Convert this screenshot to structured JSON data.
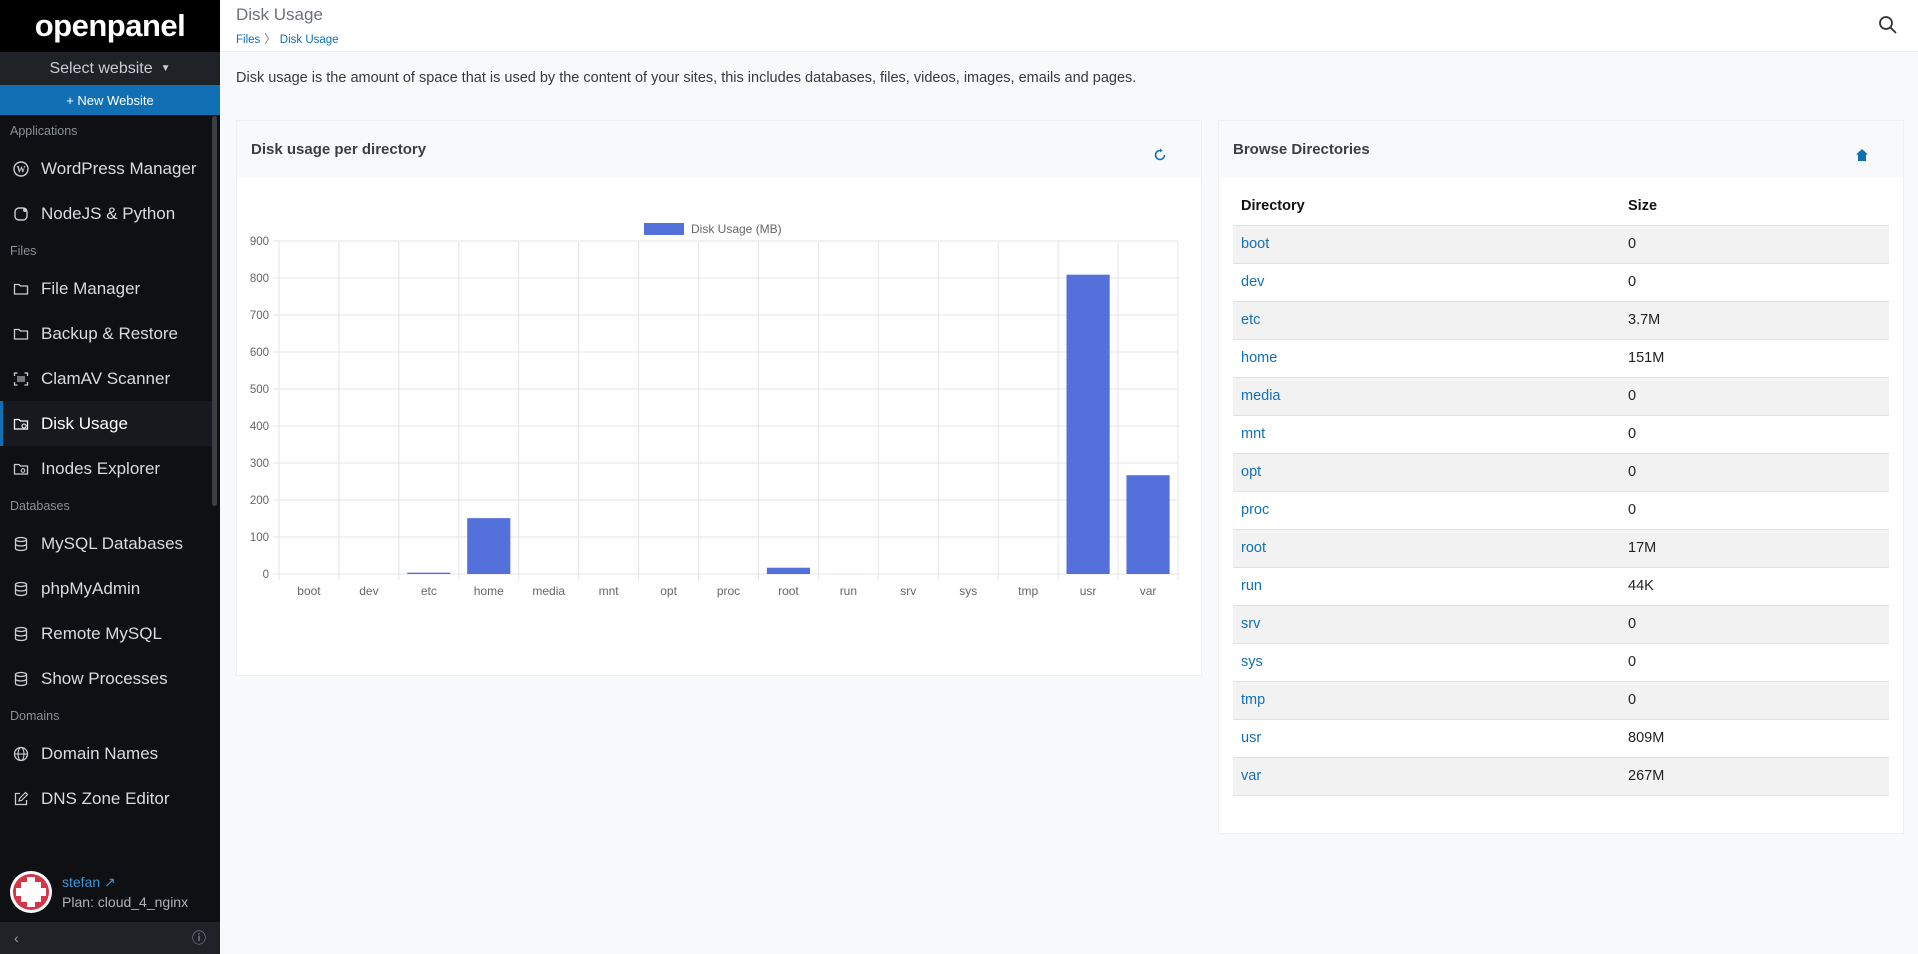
{
  "sidebar": {
    "logo": "openpanel",
    "select_website": "Select website",
    "new_website": "+ New Website",
    "sections": [
      {
        "title": "Applications",
        "items": [
          {
            "label": "WordPress Manager",
            "icon": "wordpress-icon"
          },
          {
            "label": "NodeJS & Python",
            "icon": "app-icon"
          }
        ]
      },
      {
        "title": "Files",
        "items": [
          {
            "label": "File Manager",
            "icon": "folder-icon"
          },
          {
            "label": "Backup & Restore",
            "icon": "folder-icon"
          },
          {
            "label": "ClamAV Scanner",
            "icon": "scanner-icon"
          },
          {
            "label": "Disk Usage",
            "icon": "disk-folder-icon"
          },
          {
            "label": "Inodes Explorer",
            "icon": "folder-search-icon"
          }
        ]
      },
      {
        "title": "Databases",
        "items": [
          {
            "label": "MySQL Databases",
            "icon": "database-icon"
          },
          {
            "label": "phpMyAdmin",
            "icon": "database-icon"
          },
          {
            "label": "Remote MySQL",
            "icon": "database-icon"
          },
          {
            "label": "Show Processes",
            "icon": "database-icon"
          }
        ]
      },
      {
        "title": "Domains",
        "items": [
          {
            "label": "Domain Names",
            "icon": "globe-icon"
          },
          {
            "label": "DNS Zone Editor",
            "icon": "edit-icon"
          }
        ]
      }
    ],
    "active_item": "Disk Usage",
    "user": {
      "name": "stefan",
      "plan": "Plan: cloud_4_nginx"
    }
  },
  "header": {
    "title": "Disk Usage",
    "breadcrumb": [
      "Files",
      "Disk Usage"
    ]
  },
  "intro": "Disk usage is the amount of space that is used by the content of your sites, this includes databases, files, videos, images, emails and pages.",
  "chart_card": {
    "title": "Disk usage per directory"
  },
  "browse_card": {
    "title": "Browse Directories",
    "col_directory": "Directory",
    "col_size": "Size"
  },
  "directories": [
    {
      "name": "boot",
      "size": "0"
    },
    {
      "name": "dev",
      "size": "0"
    },
    {
      "name": "etc",
      "size": "3.7M"
    },
    {
      "name": "home",
      "size": "151M"
    },
    {
      "name": "media",
      "size": "0"
    },
    {
      "name": "mnt",
      "size": "0"
    },
    {
      "name": "opt",
      "size": "0"
    },
    {
      "name": "proc",
      "size": "0"
    },
    {
      "name": "root",
      "size": "17M"
    },
    {
      "name": "run",
      "size": "44K"
    },
    {
      "name": "srv",
      "size": "0"
    },
    {
      "name": "sys",
      "size": "0"
    },
    {
      "name": "tmp",
      "size": "0"
    },
    {
      "name": "usr",
      "size": "809M"
    },
    {
      "name": "var",
      "size": "267M"
    }
  ],
  "colors": {
    "accent": "#1170b4",
    "bar": "#5470db"
  },
  "chart_data": {
    "type": "bar",
    "title": "",
    "legend": "top",
    "series": [
      {
        "name": "Disk Usage (MB)",
        "values": [
          0,
          0,
          3.7,
          151,
          0,
          0,
          0,
          0,
          17,
          0.044,
          0,
          0,
          0,
          809,
          267
        ]
      }
    ],
    "categories": [
      "boot",
      "dev",
      "etc",
      "home",
      "media",
      "mnt",
      "opt",
      "proc",
      "root",
      "run",
      "srv",
      "sys",
      "tmp",
      "usr",
      "var"
    ],
    "yticks": [
      0,
      100,
      200,
      300,
      400,
      500,
      600,
      700,
      800,
      900
    ],
    "ylim": [
      0,
      900
    ],
    "grid": true
  }
}
